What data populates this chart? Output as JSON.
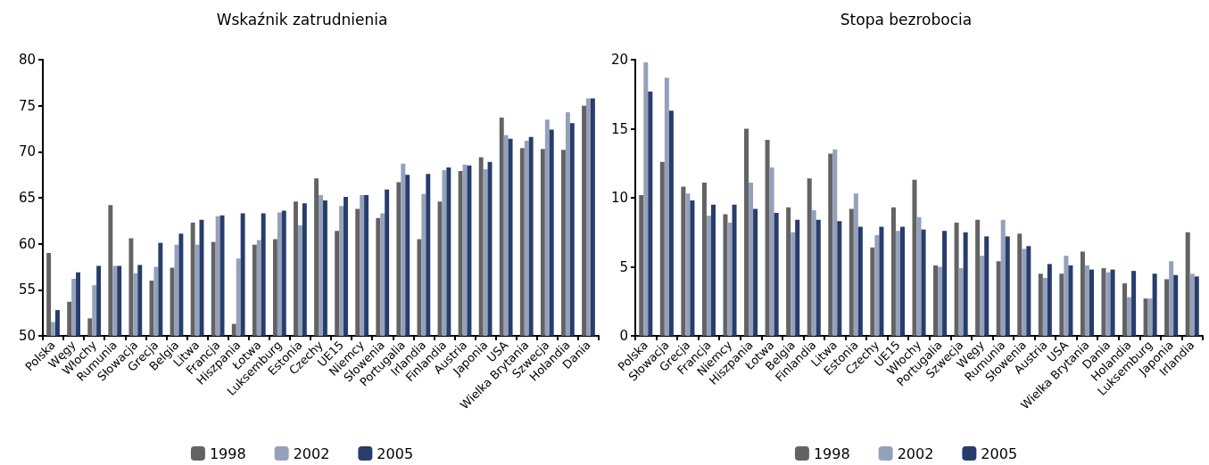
{
  "chart_data": [
    {
      "type": "bar",
      "title": "Wskaźnik zatrudnienia",
      "categories": [
        "Polska",
        "Węgy",
        "Włochy",
        "Rumunia",
        "Słowacja",
        "Grecja",
        "Belgia",
        "Litwa",
        "Francja",
        "Hiszpania",
        "Łotwa",
        "Luksemburg",
        "Estonia",
        "Czechy",
        "UE15",
        "Niemcy",
        "Słowenia",
        "Portugalia",
        "Irlandia",
        "Finlandia",
        "Austria",
        "Japonia",
        "USA",
        "Wielka Brytania",
        "Szwecja",
        "Holandia",
        "Dania"
      ],
      "series": [
        {
          "name": "1998",
          "color": "#636363",
          "values": [
            59.0,
            53.7,
            51.9,
            64.2,
            60.6,
            56.0,
            57.4,
            62.3,
            60.2,
            51.3,
            59.9,
            60.5,
            64.6,
            67.1,
            61.4,
            63.8,
            62.8,
            66.7,
            60.5,
            64.6,
            67.9,
            69.4,
            73.7,
            70.4,
            70.3,
            70.2,
            75.0
          ]
        },
        {
          "name": "2002",
          "color": "#95a1ba",
          "values": [
            51.5,
            56.2,
            55.5,
            57.6,
            56.8,
            57.5,
            59.9,
            59.9,
            63.0,
            58.4,
            60.4,
            63.4,
            62.0,
            65.3,
            64.1,
            65.3,
            63.3,
            68.7,
            65.4,
            68.0,
            68.6,
            68.1,
            71.8,
            71.2,
            73.5,
            74.3,
            75.8
          ]
        },
        {
          "name": "2005",
          "color": "#273d6b",
          "values": [
            52.8,
            56.9,
            57.6,
            57.6,
            57.7,
            60.1,
            61.1,
            62.6,
            63.1,
            63.3,
            63.3,
            63.6,
            64.4,
            64.7,
            65.1,
            65.3,
            65.9,
            67.5,
            67.6,
            68.3,
            68.5,
            68.9,
            71.4,
            71.6,
            72.4,
            73.1,
            75.8
          ]
        }
      ],
      "ylim": [
        50,
        80
      ],
      "yticks": [
        50,
        55,
        60,
        65,
        70,
        75,
        80
      ],
      "grid": false,
      "legend": "bottom"
    },
    {
      "type": "bar",
      "title": "Stopa bezrobocia",
      "categories": [
        "Polska",
        "Słowacja",
        "Grecja",
        "Francja",
        "Niemcy",
        "Hiszpania",
        "Łotwa",
        "Belgia",
        "Finlandia",
        "Litwa",
        "Estonia",
        "Czechy",
        "UE15",
        "Włochy",
        "Portugalia",
        "Szwecja",
        "Węgy",
        "Rumunia",
        "Słowenia",
        "Austria",
        "USA",
        "Wielka Brytania",
        "Dania",
        "Holandia",
        "Luksemburg",
        "Japonia",
        "Irlandia"
      ],
      "series": [
        {
          "name": "1998",
          "color": "#636363",
          "values": [
            10.2,
            12.6,
            10.8,
            11.1,
            8.8,
            15.0,
            14.2,
            9.3,
            11.4,
            13.2,
            9.2,
            6.4,
            9.3,
            11.3,
            5.1,
            8.2,
            8.4,
            5.4,
            7.4,
            4.5,
            4.5,
            6.1,
            4.9,
            3.8,
            2.7,
            4.1,
            7.5
          ]
        },
        {
          "name": "2002",
          "color": "#95a1ba",
          "values": [
            19.8,
            18.7,
            10.3,
            8.7,
            8.2,
            11.1,
            12.2,
            7.5,
            9.1,
            13.5,
            10.3,
            7.3,
            7.6,
            8.6,
            5.0,
            4.9,
            5.8,
            8.4,
            6.3,
            4.2,
            5.8,
            5.1,
            4.6,
            2.8,
            2.7,
            5.4,
            4.5
          ]
        },
        {
          "name": "2005",
          "color": "#273d6b",
          "values": [
            17.7,
            16.3,
            9.8,
            9.5,
            9.5,
            9.2,
            8.9,
            8.4,
            8.4,
            8.3,
            7.9,
            7.9,
            7.9,
            7.7,
            7.6,
            7.5,
            7.2,
            7.2,
            6.5,
            5.2,
            5.1,
            4.8,
            4.8,
            4.7,
            4.5,
            4.4,
            4.3
          ]
        }
      ],
      "ylim": [
        0,
        20
      ],
      "yticks": [
        0,
        5,
        10,
        15,
        20
      ],
      "grid": false,
      "legend": "bottom"
    }
  ]
}
